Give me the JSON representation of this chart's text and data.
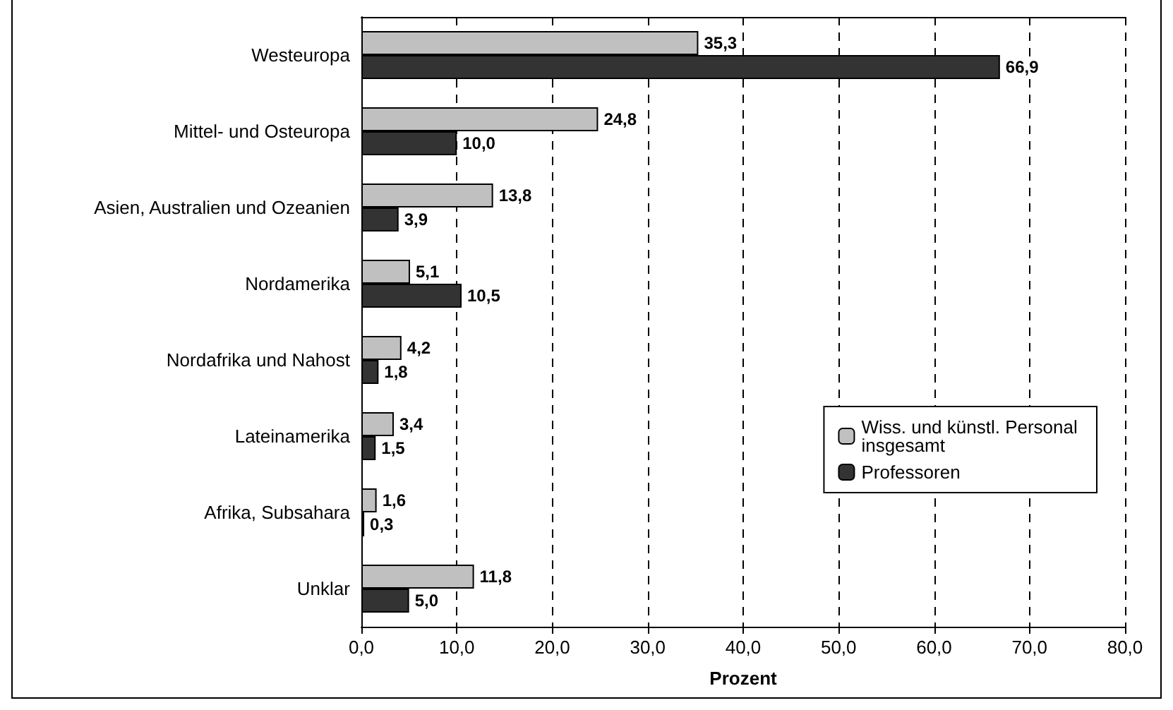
{
  "chart_data": {
    "type": "bar",
    "orientation": "horizontal",
    "xlabel": "Prozent",
    "categories": [
      "Westeuropa",
      "Mittel- und Osteuropa",
      "Asien, Australien und Ozeanien",
      "Nordamerika",
      "Nordafrika und Nahost",
      "Lateinamerika",
      "Afrika, Subsahara",
      "Unklar"
    ],
    "series": [
      {
        "name": "Wiss. und künstl. Personal insgesamt",
        "color": "#c0c0c0",
        "values": [
          35.3,
          24.8,
          13.8,
          5.1,
          4.2,
          3.4,
          1.6,
          11.8
        ],
        "value_labels": [
          "35,3",
          "24,8",
          "13,8",
          "5,1",
          "4,2",
          "3,4",
          "1,6",
          "11,8"
        ]
      },
      {
        "name": "Professoren",
        "color": "#333333",
        "values": [
          66.9,
          10.0,
          3.9,
          10.5,
          1.8,
          1.5,
          0.3,
          5.0
        ],
        "value_labels": [
          "66,9",
          "10,0",
          "3,9",
          "10,5",
          "1,8",
          "1,5",
          "0,3",
          "5,0"
        ]
      }
    ],
    "xlim": [
      0,
      80
    ],
    "xticks": [
      {
        "value": 0,
        "label": "0,0"
      },
      {
        "value": 10,
        "label": "10,0"
      },
      {
        "value": 20,
        "label": "20,0"
      },
      {
        "value": 30,
        "label": "30,0"
      },
      {
        "value": 40,
        "label": "40,0"
      },
      {
        "value": 50,
        "label": "50,0"
      },
      {
        "value": 60,
        "label": "60,0"
      },
      {
        "value": 70,
        "label": "70,0"
      },
      {
        "value": 80,
        "label": "80,0"
      }
    ],
    "grid": "x",
    "legend": "bottom right"
  }
}
